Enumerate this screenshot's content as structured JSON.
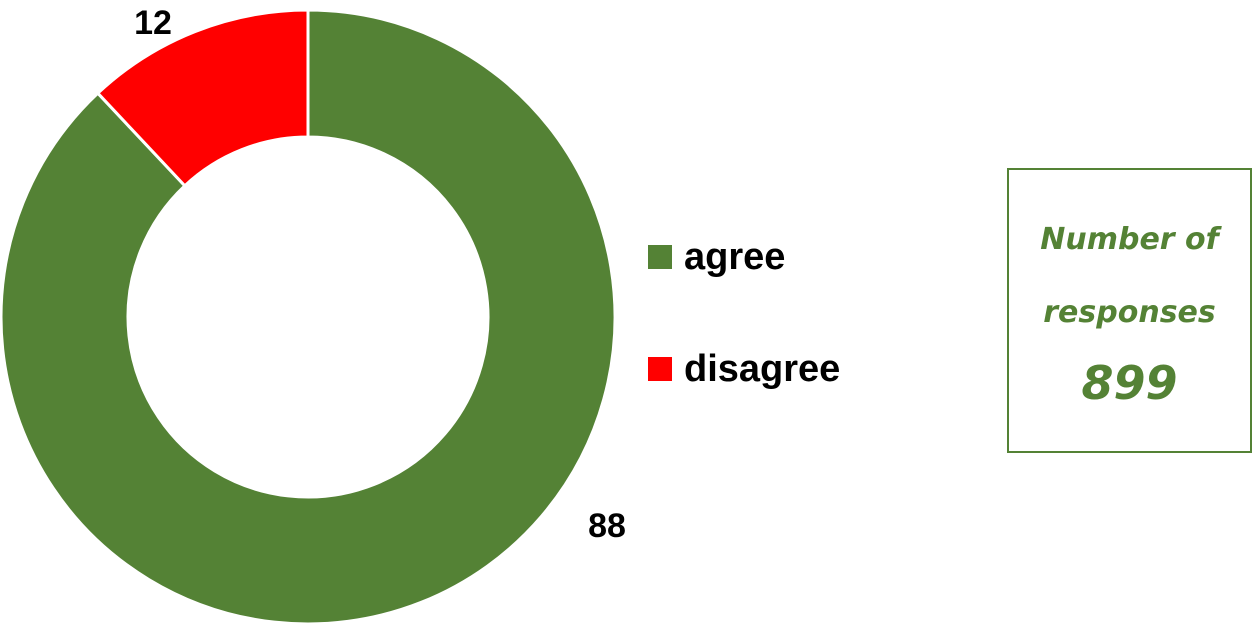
{
  "chart_data": {
    "type": "pie",
    "variant": "donut",
    "categories": [
      "agree",
      "disagree"
    ],
    "values": [
      88,
      12
    ],
    "colors": [
      "#548235",
      "#ff0000"
    ],
    "data_labels": [
      "88",
      "12"
    ],
    "legend_position": "right",
    "title": ""
  },
  "legend": [
    {
      "label": "agree",
      "color": "#548235"
    },
    {
      "label": "disagree",
      "color": "#ff0000"
    }
  ],
  "info_box": {
    "line1": "Number of",
    "line2": "responses",
    "count": "899",
    "color": "#548235"
  }
}
